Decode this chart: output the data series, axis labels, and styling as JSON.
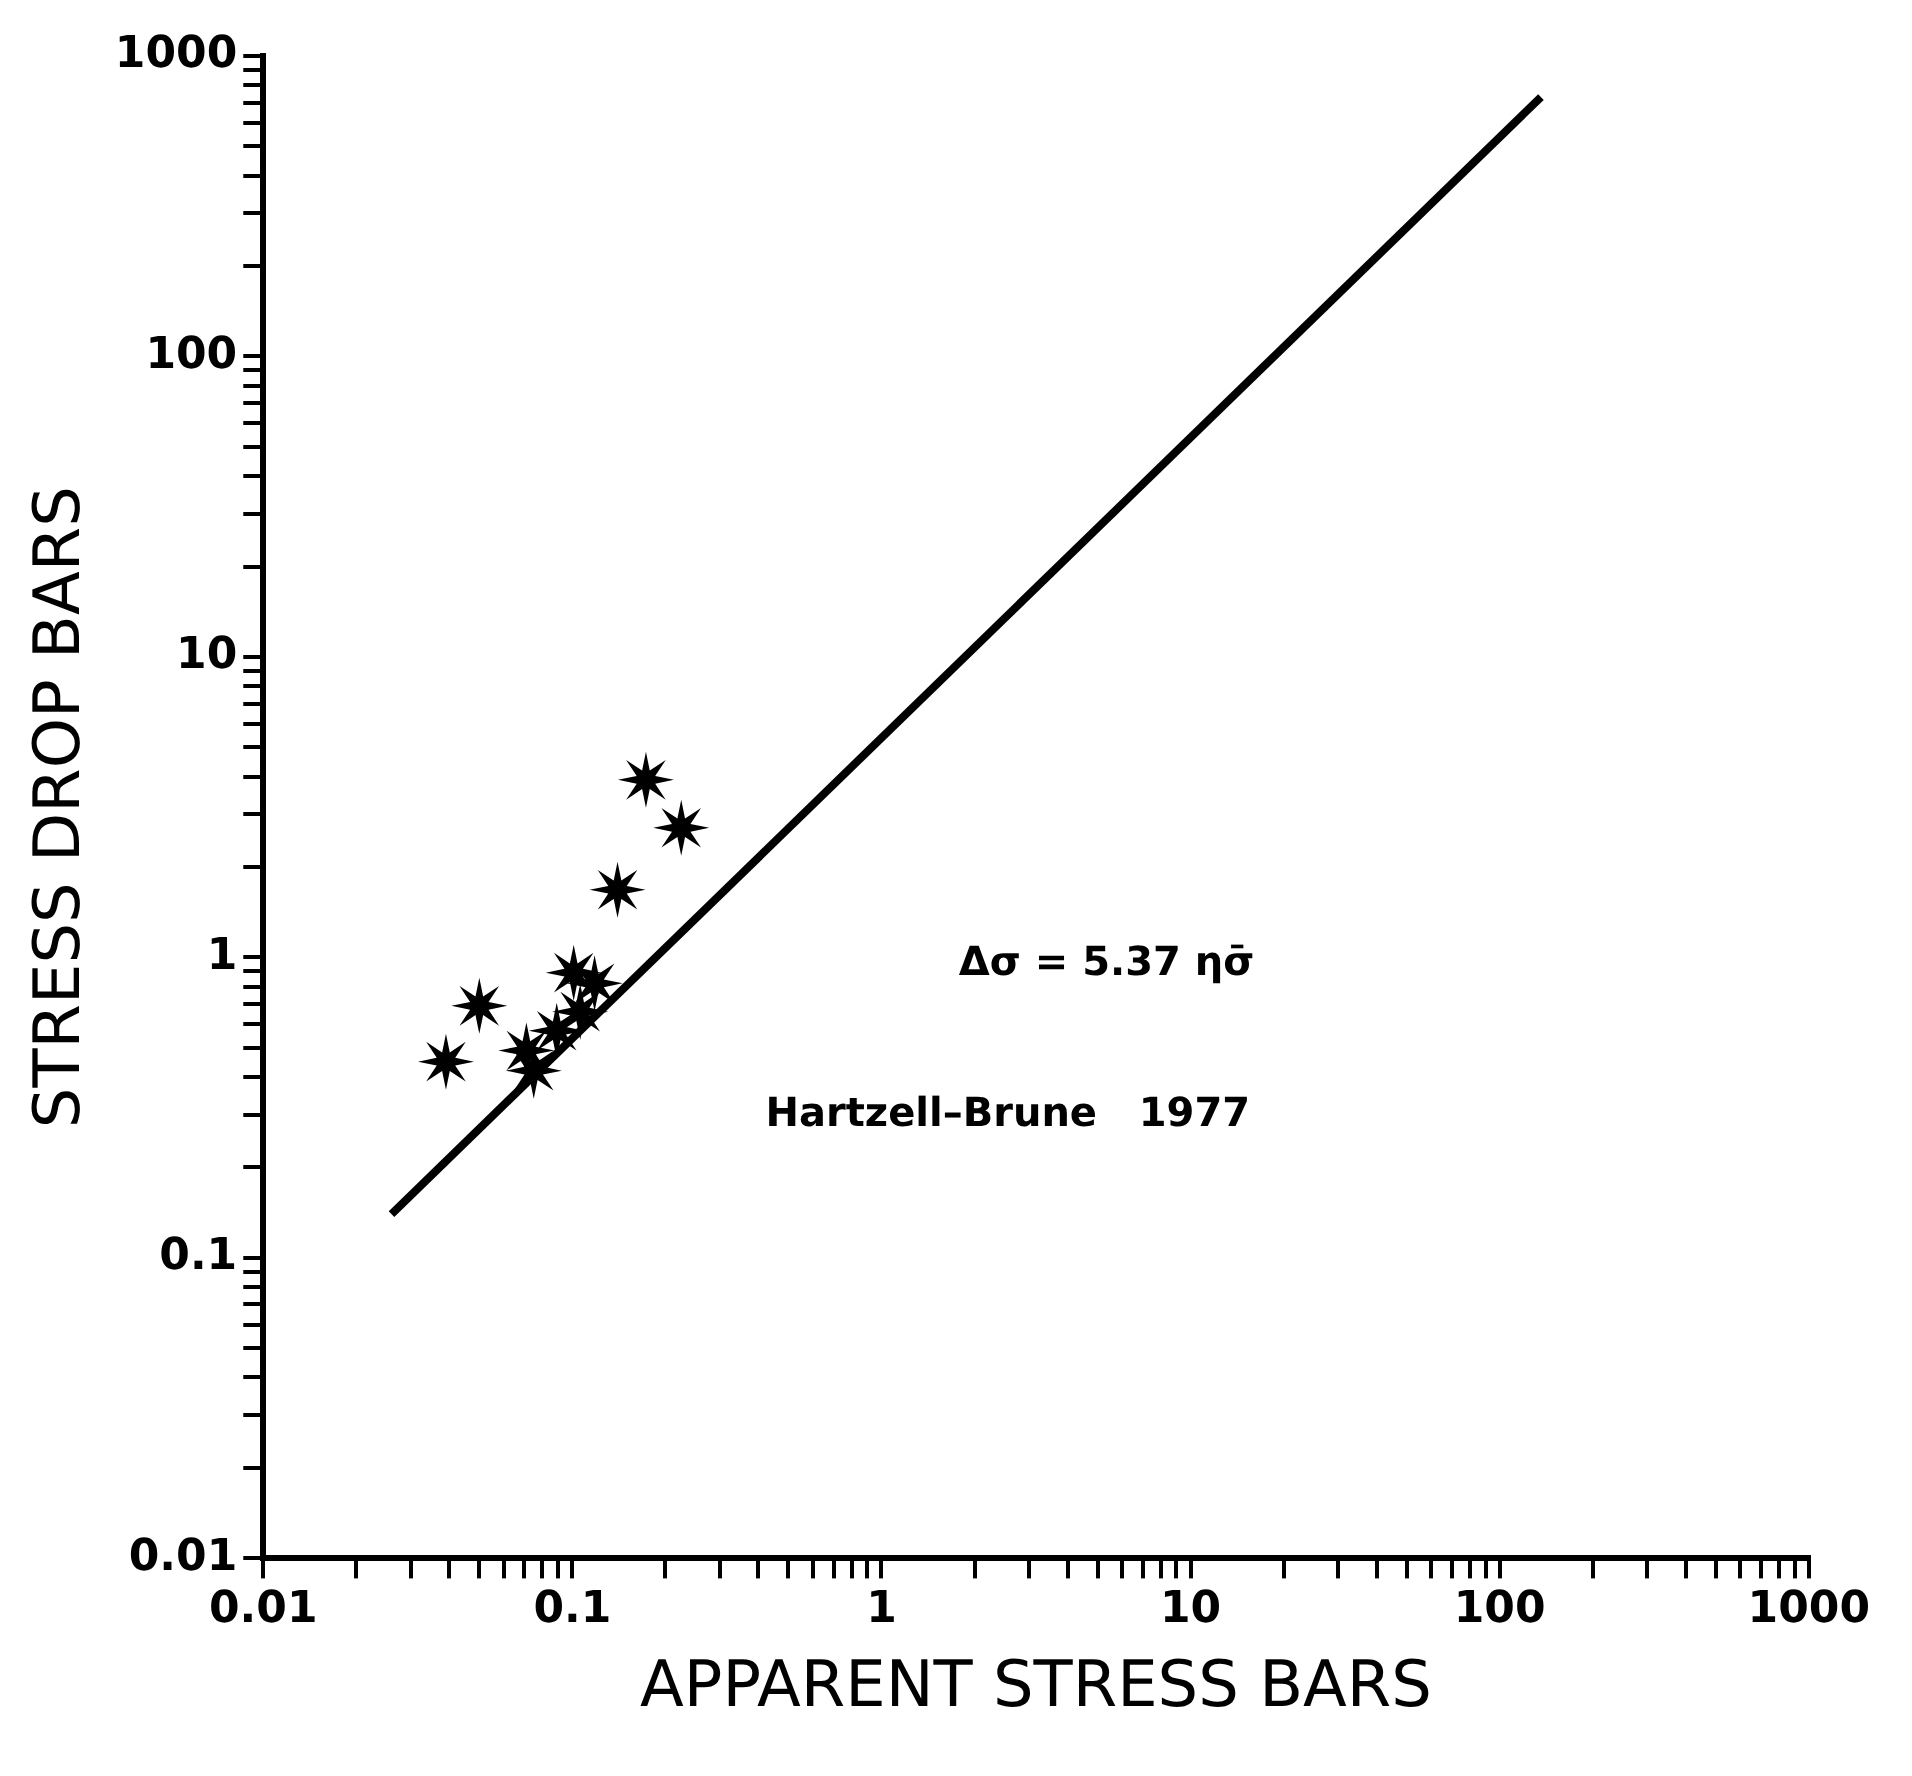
{
  "chart_data": {
    "type": "scatter",
    "xlabel": "APPARENT STRESS BARS",
    "ylabel": "STRESS DROP BARS",
    "log": "xy",
    "grid": false,
    "legend": false,
    "marker": "star",
    "xlim": [
      0.01,
      1000
    ],
    "ylim": [
      0.01,
      1000
    ],
    "xticks": [
      0.01,
      {
        "value": 0.02,
        "label": null
      },
      {
        "value": 0.03,
        "label": null
      },
      {
        "value": 0.04,
        "label": null
      },
      {
        "value": 0.05,
        "label": null
      },
      {
        "value": 0.06,
        "label": null
      },
      {
        "value": 0.07,
        "label": null
      },
      {
        "value": 0.08,
        "label": null
      },
      {
        "value": 0.09,
        "label": null
      },
      0.1,
      {
        "value": 0.2,
        "label": null
      },
      {
        "value": 0.3,
        "label": null
      },
      {
        "value": 0.4,
        "label": null
      },
      {
        "value": 0.5,
        "label": null
      },
      {
        "value": 0.6,
        "label": null
      },
      {
        "value": 0.7,
        "label": null
      },
      {
        "value": 0.8,
        "label": null
      },
      {
        "value": 0.9,
        "label": null
      },
      1,
      {
        "value": 2,
        "label": null
      },
      {
        "value": 3,
        "label": null
      },
      {
        "value": 4,
        "label": null
      },
      {
        "value": 5,
        "label": null
      },
      {
        "value": 6,
        "label": null
      },
      {
        "value": 7,
        "label": null
      },
      {
        "value": 8,
        "label": null
      },
      {
        "value": 9,
        "label": null
      },
      10,
      {
        "value": 20,
        "label": null
      },
      {
        "value": 30,
        "label": null
      },
      {
        "value": 40,
        "label": null
      },
      {
        "value": 50,
        "label": null
      },
      {
        "value": 60,
        "label": null
      },
      {
        "value": 70,
        "label": null
      },
      {
        "value": 80,
        "label": null
      },
      {
        "value": 90,
        "label": null
      },
      100,
      {
        "value": 200,
        "label": null
      },
      {
        "value": 300,
        "label": null
      },
      {
        "value": 400,
        "label": null
      },
      {
        "value": 500,
        "label": null
      },
      {
        "value": 600,
        "label": null
      },
      {
        "value": 700,
        "label": null
      },
      {
        "value": 800,
        "label": null
      },
      {
        "value": 900,
        "label": null
      },
      1000
    ],
    "yticks": [
      0.01,
      {
        "value": 0.02,
        "label": null
      },
      {
        "value": 0.03,
        "label": null
      },
      {
        "value": 0.04,
        "label": null
      },
      {
        "value": 0.05,
        "label": null
      },
      {
        "value": 0.06,
        "label": null
      },
      {
        "value": 0.07,
        "label": null
      },
      {
        "value": 0.08,
        "label": null
      },
      {
        "value": 0.09,
        "label": null
      },
      0.1,
      {
        "value": 0.2,
        "label": null
      },
      {
        "value": 0.3,
        "label": null
      },
      {
        "value": 0.4,
        "label": null
      },
      {
        "value": 0.5,
        "label": null
      },
      {
        "value": 0.6,
        "label": null
      },
      {
        "value": 0.7,
        "label": null
      },
      {
        "value": 0.8,
        "label": null
      },
      {
        "value": 0.9,
        "label": null
      },
      1,
      {
        "value": 2,
        "label": null
      },
      {
        "value": 3,
        "label": null
      },
      {
        "value": 4,
        "label": null
      },
      {
        "value": 5,
        "label": null
      },
      {
        "value": 6,
        "label": null
      },
      {
        "value": 7,
        "label": null
      },
      {
        "value": 8,
        "label": null
      },
      {
        "value": 9,
        "label": null
      },
      10,
      {
        "value": 20,
        "label": null
      },
      {
        "value": 30,
        "label": null
      },
      {
        "value": 40,
        "label": null
      },
      {
        "value": 50,
        "label": null
      },
      {
        "value": 60,
        "label": null
      },
      {
        "value": 70,
        "label": null
      },
      {
        "value": 80,
        "label": null
      },
      {
        "value": 90,
        "label": null
      },
      100,
      {
        "value": 200,
        "label": null
      },
      {
        "value": 300,
        "label": null
      },
      {
        "value": 400,
        "label": null
      },
      {
        "value": 500,
        "label": null
      },
      {
        "value": 600,
        "label": null
      },
      {
        "value": 700,
        "label": null
      },
      {
        "value": 800,
        "label": null
      },
      {
        "value": 900,
        "label": null
      },
      1000
    ],
    "series": [
      {
        "type": "scatter",
        "color": "#000000",
        "x": [
          0.173,
          0.225,
          0.14,
          0.05,
          0.039,
          0.101,
          0.118,
          0.071,
          0.089,
          0.075,
          0.106
        ],
        "values": [
          3.9,
          2.7,
          1.68,
          0.69,
          0.45,
          0.89,
          0.82,
          0.49,
          0.57,
          0.42,
          0.66
        ]
      },
      {
        "type": "line",
        "color": "#000000",
        "marker": "none",
        "x": [
          0.026,
          136
        ],
        "values": [
          0.14,
          730
        ]
      }
    ],
    "annotations": [
      "Δσ = 5.37 ησ̄",
      "Hartzell–Brune   1977"
    ]
  }
}
